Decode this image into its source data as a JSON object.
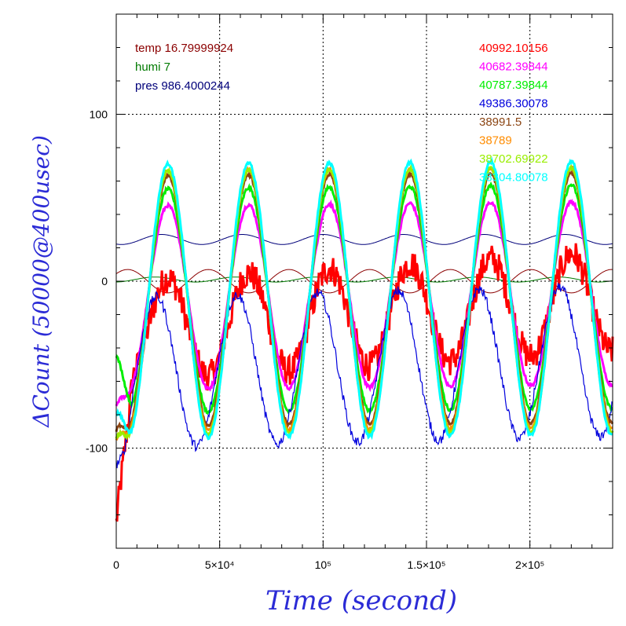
{
  "chart_data": {
    "type": "line",
    "title": "",
    "xlabel": "Time (second)",
    "ylabel": "ΔCount (50000@400usec)",
    "xlim": [
      0,
      240000
    ],
    "ylim": [
      -160,
      160
    ],
    "grid": true,
    "x_ticks": [
      {
        "value": 0,
        "label": "0"
      },
      {
        "value": 50000,
        "label": "5×10⁴"
      },
      {
        "value": 100000,
        "label": "10⁵"
      },
      {
        "value": 150000,
        "label": "1.5×10⁵"
      },
      {
        "value": 200000,
        "label": "2×10⁵"
      }
    ],
    "y_ticks": [
      {
        "value": 100,
        "label": "100"
      },
      {
        "value": 0,
        "label": "0"
      },
      {
        "value": -100,
        "label": "-100"
      }
    ],
    "env_legend": [
      {
        "label": "temp 16.79999924",
        "color": "#8b0000"
      },
      {
        "label": "humi 7",
        "color": "#007a00"
      },
      {
        "label": "pres 986.4000244",
        "color": "#00007a"
      }
    ],
    "series": [
      {
        "name": "40992.10156",
        "color": "#ff0000",
        "center": -30,
        "amplitude": 30,
        "trend": 0.25,
        "phase": 0,
        "noise": 9,
        "start": -145
      },
      {
        "name": "40682.39844",
        "color": "#ff00ff",
        "center": -10,
        "amplitude": 55,
        "trend": 0.04,
        "phase": 0,
        "noise": 1,
        "start": -75
      },
      {
        "name": "40787.39844",
        "color": "#00ee00",
        "center": -12,
        "amplitude": 67,
        "trend": 0.04,
        "phase": 0,
        "noise": 1,
        "start": -45
      },
      {
        "name": "49386.30078",
        "color": "#0000dd",
        "center": -55,
        "amplitude": 45,
        "trend": 0.1,
        "phase": 0.9,
        "noise": 3,
        "start": -110
      },
      {
        "name": "38991.5",
        "color": "#8b4513",
        "center": -12,
        "amplitude": 75,
        "trend": 0.03,
        "phase": 0,
        "noise": 1,
        "start": -90
      },
      {
        "name": "38789",
        "color": "#ff8c00",
        "center": -12,
        "amplitude": 78,
        "trend": 0.03,
        "phase": 0,
        "noise": 1,
        "start": -95
      },
      {
        "name": "38702.69922",
        "color": "#99ee00",
        "center": -13,
        "amplitude": 79,
        "trend": 0.03,
        "phase": 0,
        "noise": 1,
        "start": -95
      },
      {
        "name": "38304.80078",
        "color": "#00ffff",
        "center": -12,
        "amplitude": 82,
        "trend": 0.03,
        "phase": 0,
        "noise": 1,
        "start": -80
      }
    ],
    "env_curves": [
      {
        "name": "temp",
        "color": "#8b0000",
        "center": 0,
        "amplitude": 7,
        "phase": 3.14
      },
      {
        "name": "humi",
        "color": "#007a00",
        "center": 1,
        "amplitude": 1.5,
        "phase": 1
      },
      {
        "name": "pres",
        "color": "#00007a",
        "center": 25,
        "amplitude": 3,
        "phase": 0.5
      }
    ],
    "period_seconds": 39000
  }
}
